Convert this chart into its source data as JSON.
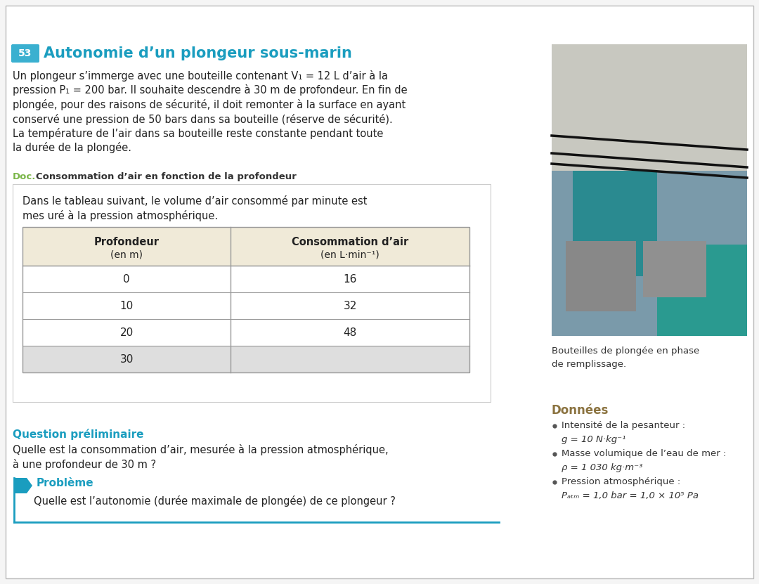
{
  "bg_color": "#f5f5f5",
  "page_bg": "#ffffff",
  "title_number": "53",
  "title_number_bg": "#3ab0d0",
  "title_number_color": "#ffffff",
  "title_text": "Autonomie d’un plongeur sous-marin",
  "title_color": "#1a9dbf",
  "body_lines": [
    "Un plongeur s’immerge avec une bouteille contenant V₁ = 12 L d’air à la",
    "pression P₁ = 200 bar. Il souhaite descendre à 30 m de profondeur. En fin de",
    "plongée, pour des raisons de sécurité, il doit remonter à la surface en ayant",
    "conservé une pression de 50 bars dans sa bouteille (réserve de sécurité).",
    "La température de l’air dans sa bouteille reste constante pendant toute",
    "la durée de la plongée."
  ],
  "doc_label": "Doc.",
  "doc_label_color": "#7ab648",
  "doc_title": "Consommation d’air en fonction de la profondeur",
  "doc_subtitle_lines": [
    "Dans le tableau suivant, le volume d’air consommé par minute est",
    "mes uré à la pression atmosphérique."
  ],
  "table_header_bg": "#f0ead8",
  "table_last_row_bg": "#dedede",
  "table_col1_header_line1": "Profondeur",
  "table_col1_header_line2": "(en m)",
  "table_col2_header_line1": "Consommation d’air",
  "table_col2_header_line2": "(en L·min⁻¹)",
  "table_data": [
    [
      "0",
      "16"
    ],
    [
      "10",
      "32"
    ],
    [
      "20",
      "48"
    ],
    [
      "30",
      ""
    ]
  ],
  "prelim_label": "Question préliminaire",
  "prelim_color": "#1a9dbf",
  "prelim_lines": [
    "Quelle est la consommation d’air, mesurée à la pression atmosphérique,",
    "à une profondeur de 30 m ?"
  ],
  "problem_label": "Problème",
  "problem_color": "#1a9dbf",
  "problem_text": "Quelle est l’autonomie (durée maximale de plongée) de ce plongeur ?",
  "right_caption_lines": [
    "Bouteilles de plongée en phase",
    "de remplissage."
  ],
  "donnees_title": "Données",
  "donnees_color": "#8B7340",
  "bullet_items": [
    [
      "Intensité de la pesanteur :",
      false
    ],
    [
      "g = 10 N·kg⁻¹",
      true
    ],
    [
      "Masse volumique de l’eau de mer :",
      false
    ],
    [
      "ρ = 1 030 kg·m⁻³",
      true
    ],
    [
      "Pression atmosphérique :",
      false
    ],
    [
      "Pₐₜₘ = 1,0 bar = 1,0 × 10⁵ Pa",
      true
    ]
  ]
}
